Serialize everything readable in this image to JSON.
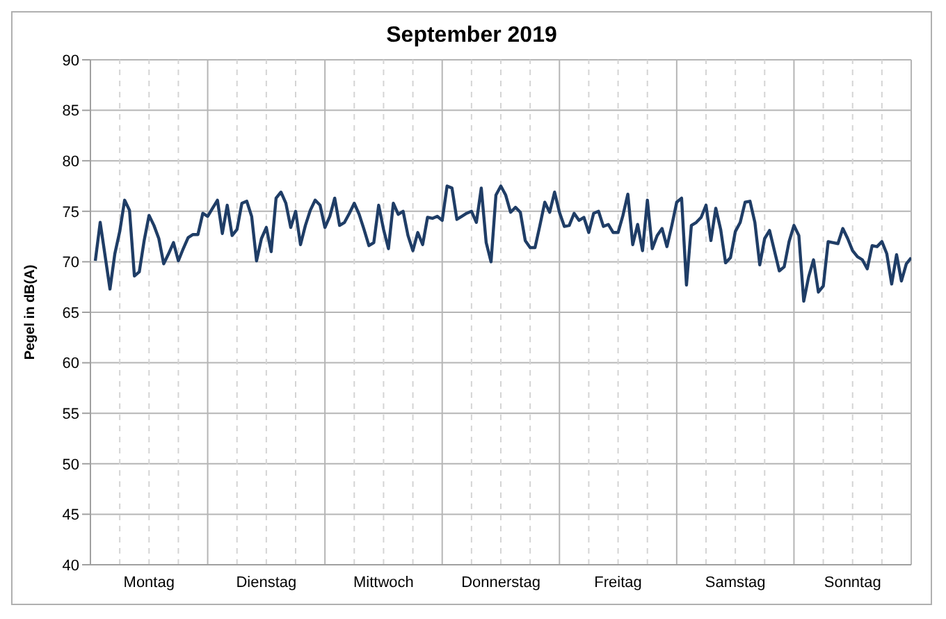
{
  "chart_data": {
    "type": "line",
    "title": "September 2019",
    "ylabel": "Pegel in dB(A)",
    "categories": [
      null,
      null,
      null,
      null,
      null,
      null,
      null,
      null,
      null,
      null,
      null,
      "Montag",
      null,
      null,
      null,
      null,
      null,
      null,
      null,
      null,
      null,
      null,
      null,
      null,
      null,
      null,
      null,
      null,
      null,
      null,
      null,
      null,
      null,
      null,
      null,
      "Dienstag",
      null,
      null,
      null,
      null,
      null,
      null,
      null,
      null,
      null,
      null,
      null,
      null,
      null,
      null,
      null,
      null,
      null,
      null,
      null,
      null,
      null,
      null,
      null,
      "Mittwoch",
      null,
      null,
      null,
      null,
      null,
      null,
      null,
      null,
      null,
      null,
      null,
      null,
      null,
      null,
      null,
      null,
      null,
      null,
      null,
      null,
      null,
      null,
      null,
      "Donnerstag",
      null,
      null,
      null,
      null,
      null,
      null,
      null,
      null,
      null,
      null,
      null,
      null,
      null,
      null,
      null,
      null,
      null,
      null,
      null,
      null,
      null,
      null,
      null,
      "Freitag",
      null,
      null,
      null,
      null,
      null,
      null,
      null,
      null,
      null,
      null,
      null,
      null,
      null,
      null,
      null,
      null,
      null,
      null,
      null,
      null,
      null,
      null,
      null,
      "Samstag",
      null,
      null,
      null,
      null,
      null,
      null,
      null,
      null,
      null,
      null,
      null,
      null,
      null,
      null,
      null,
      null,
      null,
      null,
      null,
      null,
      null,
      null,
      null,
      "Sonntag",
      null,
      null,
      null,
      null,
      null,
      null,
      null,
      null,
      null,
      null,
      null,
      null
    ],
    "ylim": [
      40,
      90
    ],
    "yticks": [
      40,
      45,
      50,
      55,
      60,
      65,
      70,
      75,
      80,
      85,
      90
    ],
    "grid": true,
    "marker": "none",
    "line_style": "solid",
    "series": [
      {
        "color": "#1f3d66",
        "values": [
          70.1,
          73.9,
          70.6,
          67.3,
          70.8,
          73.0,
          76.1,
          75.1,
          68.6,
          69.0,
          72.1,
          74.6,
          73.6,
          72.3,
          69.8,
          70.8,
          71.9,
          70.1,
          71.3,
          72.4,
          72.7,
          72.7,
          74.8,
          74.5,
          75.3,
          76.1,
          72.8,
          75.6,
          72.6,
          73.2,
          75.8,
          76.0,
          74.5,
          70.1,
          72.3,
          73.4,
          71.0,
          76.3,
          76.9,
          75.8,
          73.4,
          75.0,
          71.7,
          73.6,
          75.1,
          76.1,
          75.6,
          73.4,
          74.5,
          76.3,
          73.6,
          73.9,
          74.8,
          75.8,
          74.7,
          73.2,
          71.6,
          71.9,
          75.6,
          73.2,
          71.3,
          75.8,
          74.7,
          75.0,
          72.6,
          71.1,
          72.9,
          71.7,
          74.4,
          74.3,
          74.5,
          74.1,
          77.5,
          77.3,
          74.2,
          74.5,
          74.8,
          75.0,
          73.9,
          77.3,
          71.9,
          70.0,
          76.6,
          77.5,
          76.6,
          74.9,
          75.4,
          74.9,
          72.1,
          71.4,
          71.4,
          73.6,
          75.9,
          74.9,
          76.9,
          74.9,
          73.5,
          73.6,
          74.8,
          74.1,
          74.4,
          72.9,
          74.8,
          75.0,
          73.5,
          73.7,
          72.9,
          72.9,
          74.6,
          76.7,
          71.7,
          73.7,
          71.1,
          76.1,
          71.3,
          72.6,
          73.3,
          71.5,
          73.6,
          75.9,
          76.3,
          67.7,
          73.6,
          73.9,
          74.4,
          75.6,
          72.1,
          75.3,
          73.2,
          69.9,
          70.4,
          73.0,
          73.9,
          75.9,
          76.0,
          73.9,
          69.7,
          72.3,
          73.1,
          71.1,
          69.1,
          69.5,
          72.0,
          73.6,
          72.6,
          66.1,
          68.5,
          70.2,
          67.0,
          67.6,
          72.0,
          71.9,
          71.8,
          73.3,
          72.3,
          71.1,
          70.5,
          70.2,
          69.3,
          71.6,
          71.5,
          72.0,
          70.8,
          67.8,
          70.7,
          68.1,
          69.8,
          70.4
        ]
      }
    ]
  }
}
